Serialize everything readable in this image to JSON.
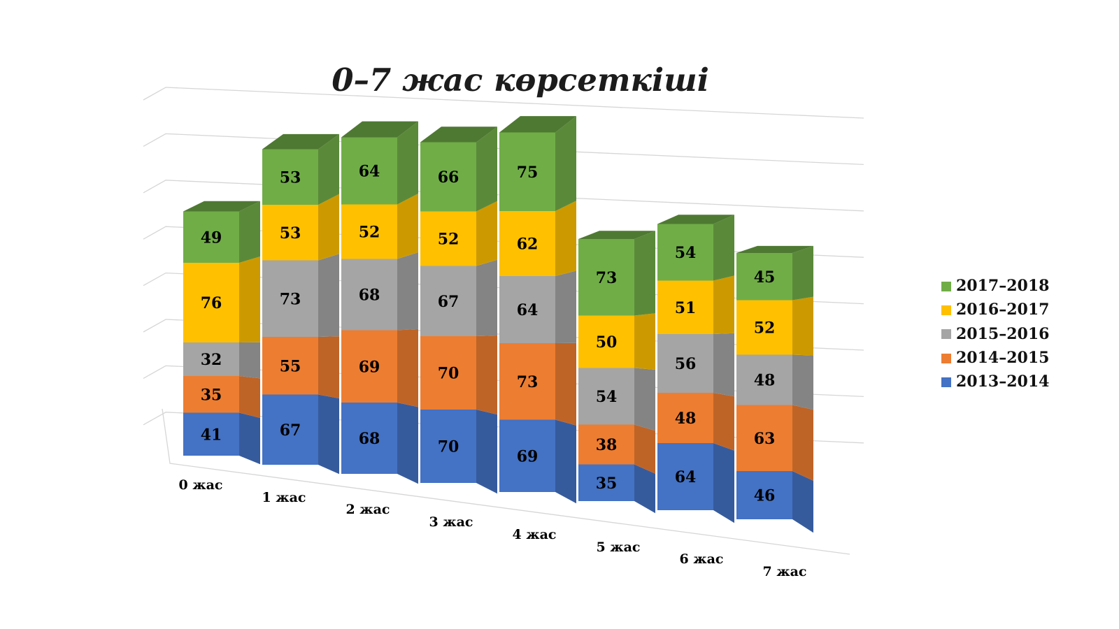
{
  "title": "0–7 жас көрсеткіші",
  "chart_data": {
    "type": "bar",
    "variant": "3d-stacked-column",
    "title": "0–7 жас көрсеткіші",
    "xlabel": "",
    "ylabel": "",
    "gridlines": true,
    "value_labels": true,
    "categories": [
      "0 жас",
      "1 жас",
      "2 жас",
      "3 жас",
      "4 жас",
      "5 жас",
      "6 жас",
      "7 жас"
    ],
    "series": [
      {
        "name": "2013–2014",
        "color": "#4472C4",
        "values": [
          41,
          67,
          68,
          70,
          69,
          35,
          64,
          46
        ]
      },
      {
        "name": "2014–2015",
        "color": "#ED7D31",
        "values": [
          35,
          55,
          69,
          70,
          73,
          38,
          48,
          63
        ]
      },
      {
        "name": "2015–2016",
        "color": "#A5A5A5",
        "values": [
          32,
          73,
          68,
          67,
          64,
          54,
          56,
          48
        ]
      },
      {
        "name": "2016–2017",
        "color": "#FFC000",
        "values": [
          76,
          53,
          52,
          52,
          62,
          50,
          51,
          52
        ]
      },
      {
        "name": "2017–2018",
        "color": "#70AD47",
        "values": [
          49,
          53,
          64,
          66,
          75,
          73,
          54,
          45
        ]
      }
    ],
    "legend": {
      "position": "right",
      "entries_top_to_bottom": [
        "2017–2018",
        "2016–2017",
        "2015–2016",
        "2014–2015",
        "2013–2014"
      ]
    }
  }
}
